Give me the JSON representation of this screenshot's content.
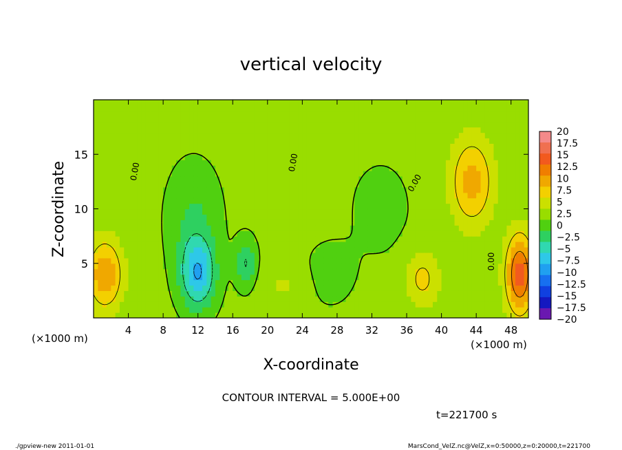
{
  "chart_data": {
    "type": "heatmap",
    "title": "vertical velocity",
    "xlabel": "X-coordinate",
    "ylabel": "Z-coordinate",
    "x_unit": "(×1000 m)",
    "y_unit": "(×1000 m)",
    "xlim": [
      0,
      50
    ],
    "ylim": [
      0,
      20
    ],
    "x_ticks": [
      4,
      8,
      12,
      16,
      20,
      24,
      28,
      32,
      36,
      40,
      44,
      48
    ],
    "y_ticks": [
      5,
      10,
      15
    ],
    "zero_contour_label": "0.00",
    "contour_interval_text": "CONTOUR INTERVAL = 5.000E+00",
    "time_text": "t=221700 s",
    "colorbar": {
      "levels": [
        "20",
        "17.5",
        "15",
        "12.5",
        "10",
        "7.5",
        "5",
        "2.5",
        "0",
        "−2.5",
        "−5",
        "−7.5",
        "−10",
        "−12.5",
        "−15",
        "−17.5",
        "−20"
      ],
      "colors": [
        "#f48a8a",
        "#f07050",
        "#f25a1e",
        "#f07e00",
        "#f0a800",
        "#f3d000",
        "#cbe000",
        "#99dd00",
        "#50d010",
        "#2ed060",
        "#30d8b0",
        "#2ec8e8",
        "#20a0f0",
        "#1770f0",
        "#1040e0",
        "#1418c0",
        "#6a18b0"
      ]
    },
    "field_centers": [
      {
        "x": 1.3,
        "z": 4.0,
        "value": 9,
        "rx": 2.0,
        "rz": 3.2
      },
      {
        "x": 49.0,
        "z": 4.0,
        "value": 13,
        "rx": 1.6,
        "rz": 3.6
      },
      {
        "x": 43.5,
        "z": 12.5,
        "value": 8,
        "rx": 2.4,
        "rz": 4.0
      },
      {
        "x": 37.8,
        "z": 3.6,
        "value": 5,
        "rx": 2.0,
        "rz": 2.6
      },
      {
        "x": 12.0,
        "z": 4.0,
        "value": -10,
        "rx": 2.0,
        "rz": 3.2
      },
      {
        "x": 11.5,
        "z": 9.0,
        "value": -3.5,
        "rx": 3.0,
        "rz": 5.0
      },
      {
        "x": 17.5,
        "z": 5.0,
        "value": -6,
        "rx": 1.2,
        "rz": 2.2
      },
      {
        "x": 27.0,
        "z": 4.0,
        "value": -2,
        "rx": 3.0,
        "rz": 3.0
      },
      {
        "x": 33.0,
        "z": 10.0,
        "value": -1.5,
        "rx": 4.0,
        "rz": 5.0
      },
      {
        "x": 22.0,
        "z": 3.0,
        "value": 2,
        "rx": 3.0,
        "rz": 2.0
      }
    ]
  },
  "footer": {
    "left": "./gpview-new  2011-01-01",
    "right": "MarsCond_VelZ.nc@VelZ,x=0:50000,z=0:20000,t=221700"
  }
}
